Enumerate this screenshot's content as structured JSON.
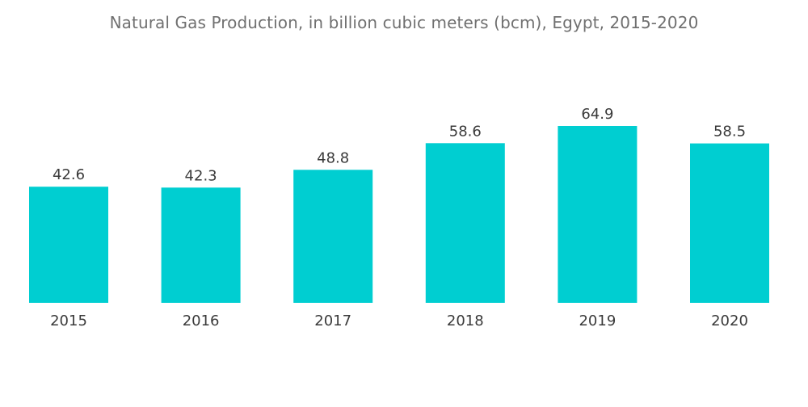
{
  "chart_data": {
    "type": "bar",
    "title": "Natural Gas Production, in billion cubic meters (bcm), Egypt, 2015-2020",
    "categories": [
      "2015",
      "2016",
      "2017",
      "2018",
      "2019",
      "2020"
    ],
    "values": [
      42.6,
      42.3,
      48.8,
      58.6,
      64.9,
      58.5
    ],
    "value_labels": [
      "42.6",
      "42.3",
      "48.8",
      "58.6",
      "64.9",
      "58.5"
    ],
    "xlabel": "",
    "ylabel": "",
    "ylim": [
      0,
      64.9
    ],
    "grid": false,
    "legend": "none",
    "bar_color": "#00CED1"
  }
}
